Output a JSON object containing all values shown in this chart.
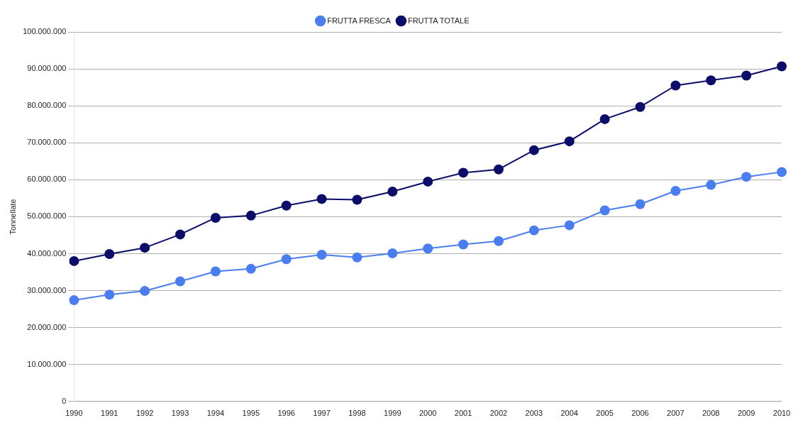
{
  "chart_data": {
    "type": "line",
    "ylabel": "Tonnellate",
    "categories": [
      "1990",
      "1991",
      "1992",
      "1993",
      "1994",
      "1995",
      "1996",
      "1997",
      "1998",
      "1999",
      "2000",
      "2001",
      "2002",
      "2003",
      "2004",
      "2005",
      "2006",
      "2007",
      "2008",
      "2009",
      "2010"
    ],
    "series": [
      {
        "name": "FRUTTA FRESCA",
        "color": "#4a7ef0",
        "values": [
          27400000,
          28900000,
          29900000,
          32500000,
          35200000,
          35900000,
          38500000,
          39700000,
          39000000,
          40100000,
          41400000,
          42500000,
          43400000,
          46300000,
          47700000,
          51700000,
          53400000,
          57000000,
          58600000,
          60800000,
          62100000
        ]
      },
      {
        "name": "FRUTTA TOTALE",
        "color": "#0c0c6a",
        "values": [
          38000000,
          39900000,
          41600000,
          45200000,
          49700000,
          50300000,
          53000000,
          54800000,
          54600000,
          56800000,
          59500000,
          61900000,
          62800000,
          68000000,
          70400000,
          76400000,
          79700000,
          85500000,
          86900000,
          88200000,
          90700000
        ]
      }
    ],
    "ylim": [
      0,
      100000000
    ],
    "yticks": [
      {
        "value": 0,
        "label": "0"
      },
      {
        "value": 10000000,
        "label": "10.000.000"
      },
      {
        "value": 20000000,
        "label": "20.000.000"
      },
      {
        "value": 30000000,
        "label": "30.000.000"
      },
      {
        "value": 40000000,
        "label": "40.000.000"
      },
      {
        "value": 50000000,
        "label": "50.000.000"
      },
      {
        "value": 60000000,
        "label": "60.000.000"
      },
      {
        "value": 70000000,
        "label": "70.000.000"
      },
      {
        "value": 80000000,
        "label": "80.000.000"
      },
      {
        "value": 90000000,
        "label": "90.000.000"
      },
      {
        "value": 100000000,
        "label": "100.000.000"
      }
    ],
    "grid": "y",
    "legend": "top",
    "marker": "circle",
    "line_style": "solid"
  }
}
